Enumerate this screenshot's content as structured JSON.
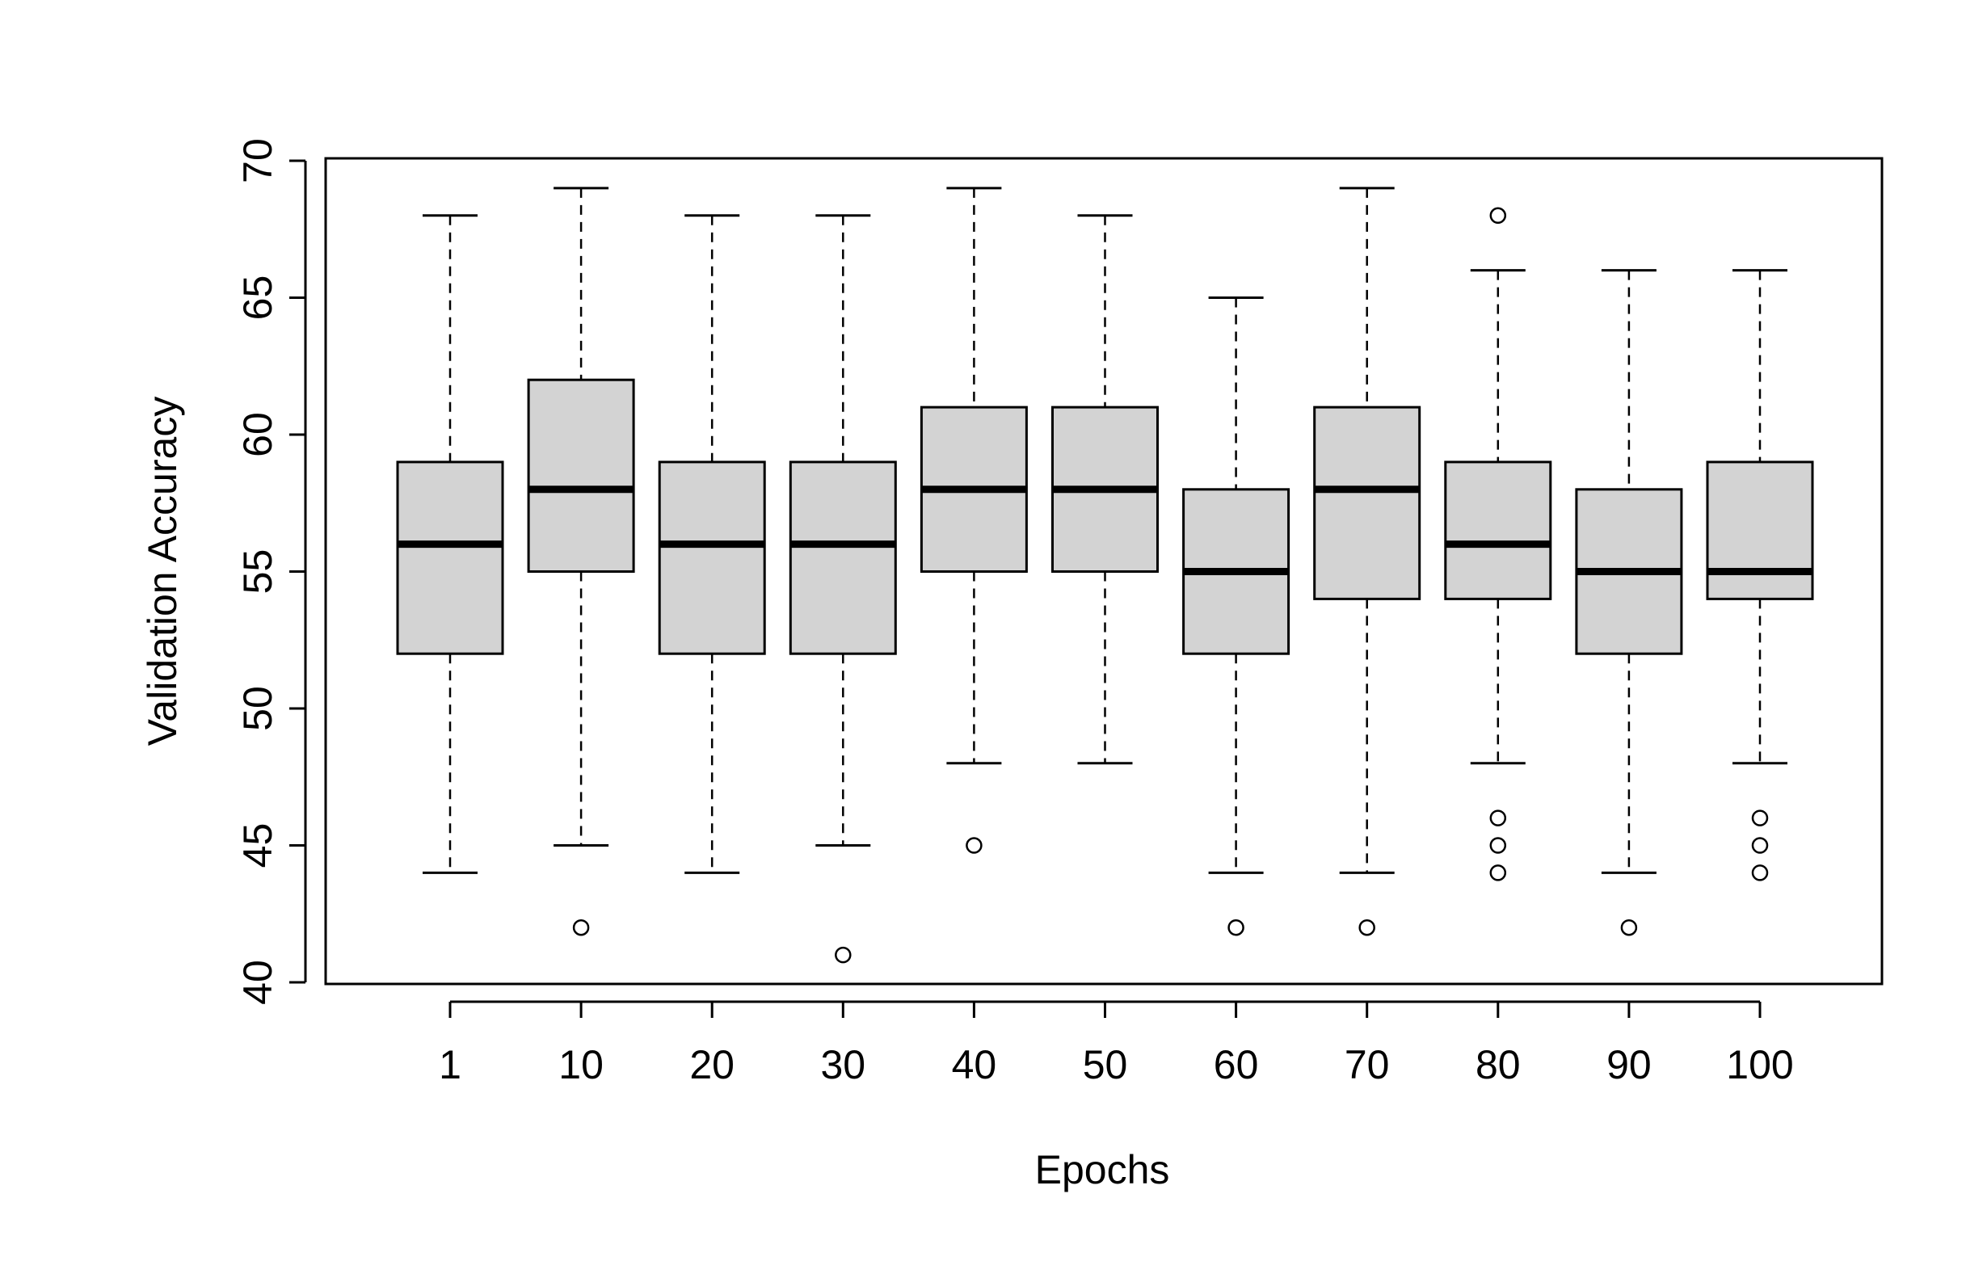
{
  "chart_data": {
    "type": "box",
    "xlabel": "Epochs",
    "ylabel": "Validation Accuracy",
    "ylim": [
      40,
      70
    ],
    "yticks": [
      40,
      45,
      50,
      55,
      60,
      65,
      70
    ],
    "categories": [
      "1",
      "10",
      "20",
      "30",
      "40",
      "50",
      "60",
      "70",
      "80",
      "90",
      "100"
    ],
    "boxes": [
      {
        "category": "1",
        "min": 44,
        "q1": 52,
        "median": 56,
        "q3": 59,
        "max": 68,
        "outliers": []
      },
      {
        "category": "10",
        "min": 45,
        "q1": 55,
        "median": 58,
        "q3": 62,
        "max": 69,
        "outliers": [
          42
        ]
      },
      {
        "category": "20",
        "min": 44,
        "q1": 52,
        "median": 56,
        "q3": 59,
        "max": 68,
        "outliers": []
      },
      {
        "category": "30",
        "min": 45,
        "q1": 52,
        "median": 56,
        "q3": 59,
        "max": 68,
        "outliers": [
          41
        ]
      },
      {
        "category": "40",
        "min": 48,
        "q1": 55,
        "median": 58,
        "q3": 61,
        "max": 69,
        "outliers": [
          45
        ]
      },
      {
        "category": "50",
        "min": 48,
        "q1": 55,
        "median": 58,
        "q3": 61,
        "max": 68,
        "outliers": []
      },
      {
        "category": "60",
        "min": 44,
        "q1": 52,
        "median": 55,
        "q3": 58,
        "max": 65,
        "outliers": [
          42
        ]
      },
      {
        "category": "70",
        "min": 44,
        "q1": 54,
        "median": 58,
        "q3": 61,
        "max": 69,
        "outliers": [
          42
        ]
      },
      {
        "category": "80",
        "min": 48,
        "q1": 54,
        "median": 56,
        "q3": 59,
        "max": 66,
        "outliers": [
          68,
          46,
          45,
          44
        ]
      },
      {
        "category": "90",
        "min": 44,
        "q1": 52,
        "median": 55,
        "q3": 58,
        "max": 66,
        "outliers": [
          42
        ]
      },
      {
        "category": "100",
        "min": 48,
        "q1": 54,
        "median": 55,
        "q3": 59,
        "max": 66,
        "outliers": [
          46,
          45,
          44
        ]
      }
    ],
    "box_color": "#d3d3d3",
    "line_color": "#000000",
    "grid": false,
    "legend": "none"
  }
}
